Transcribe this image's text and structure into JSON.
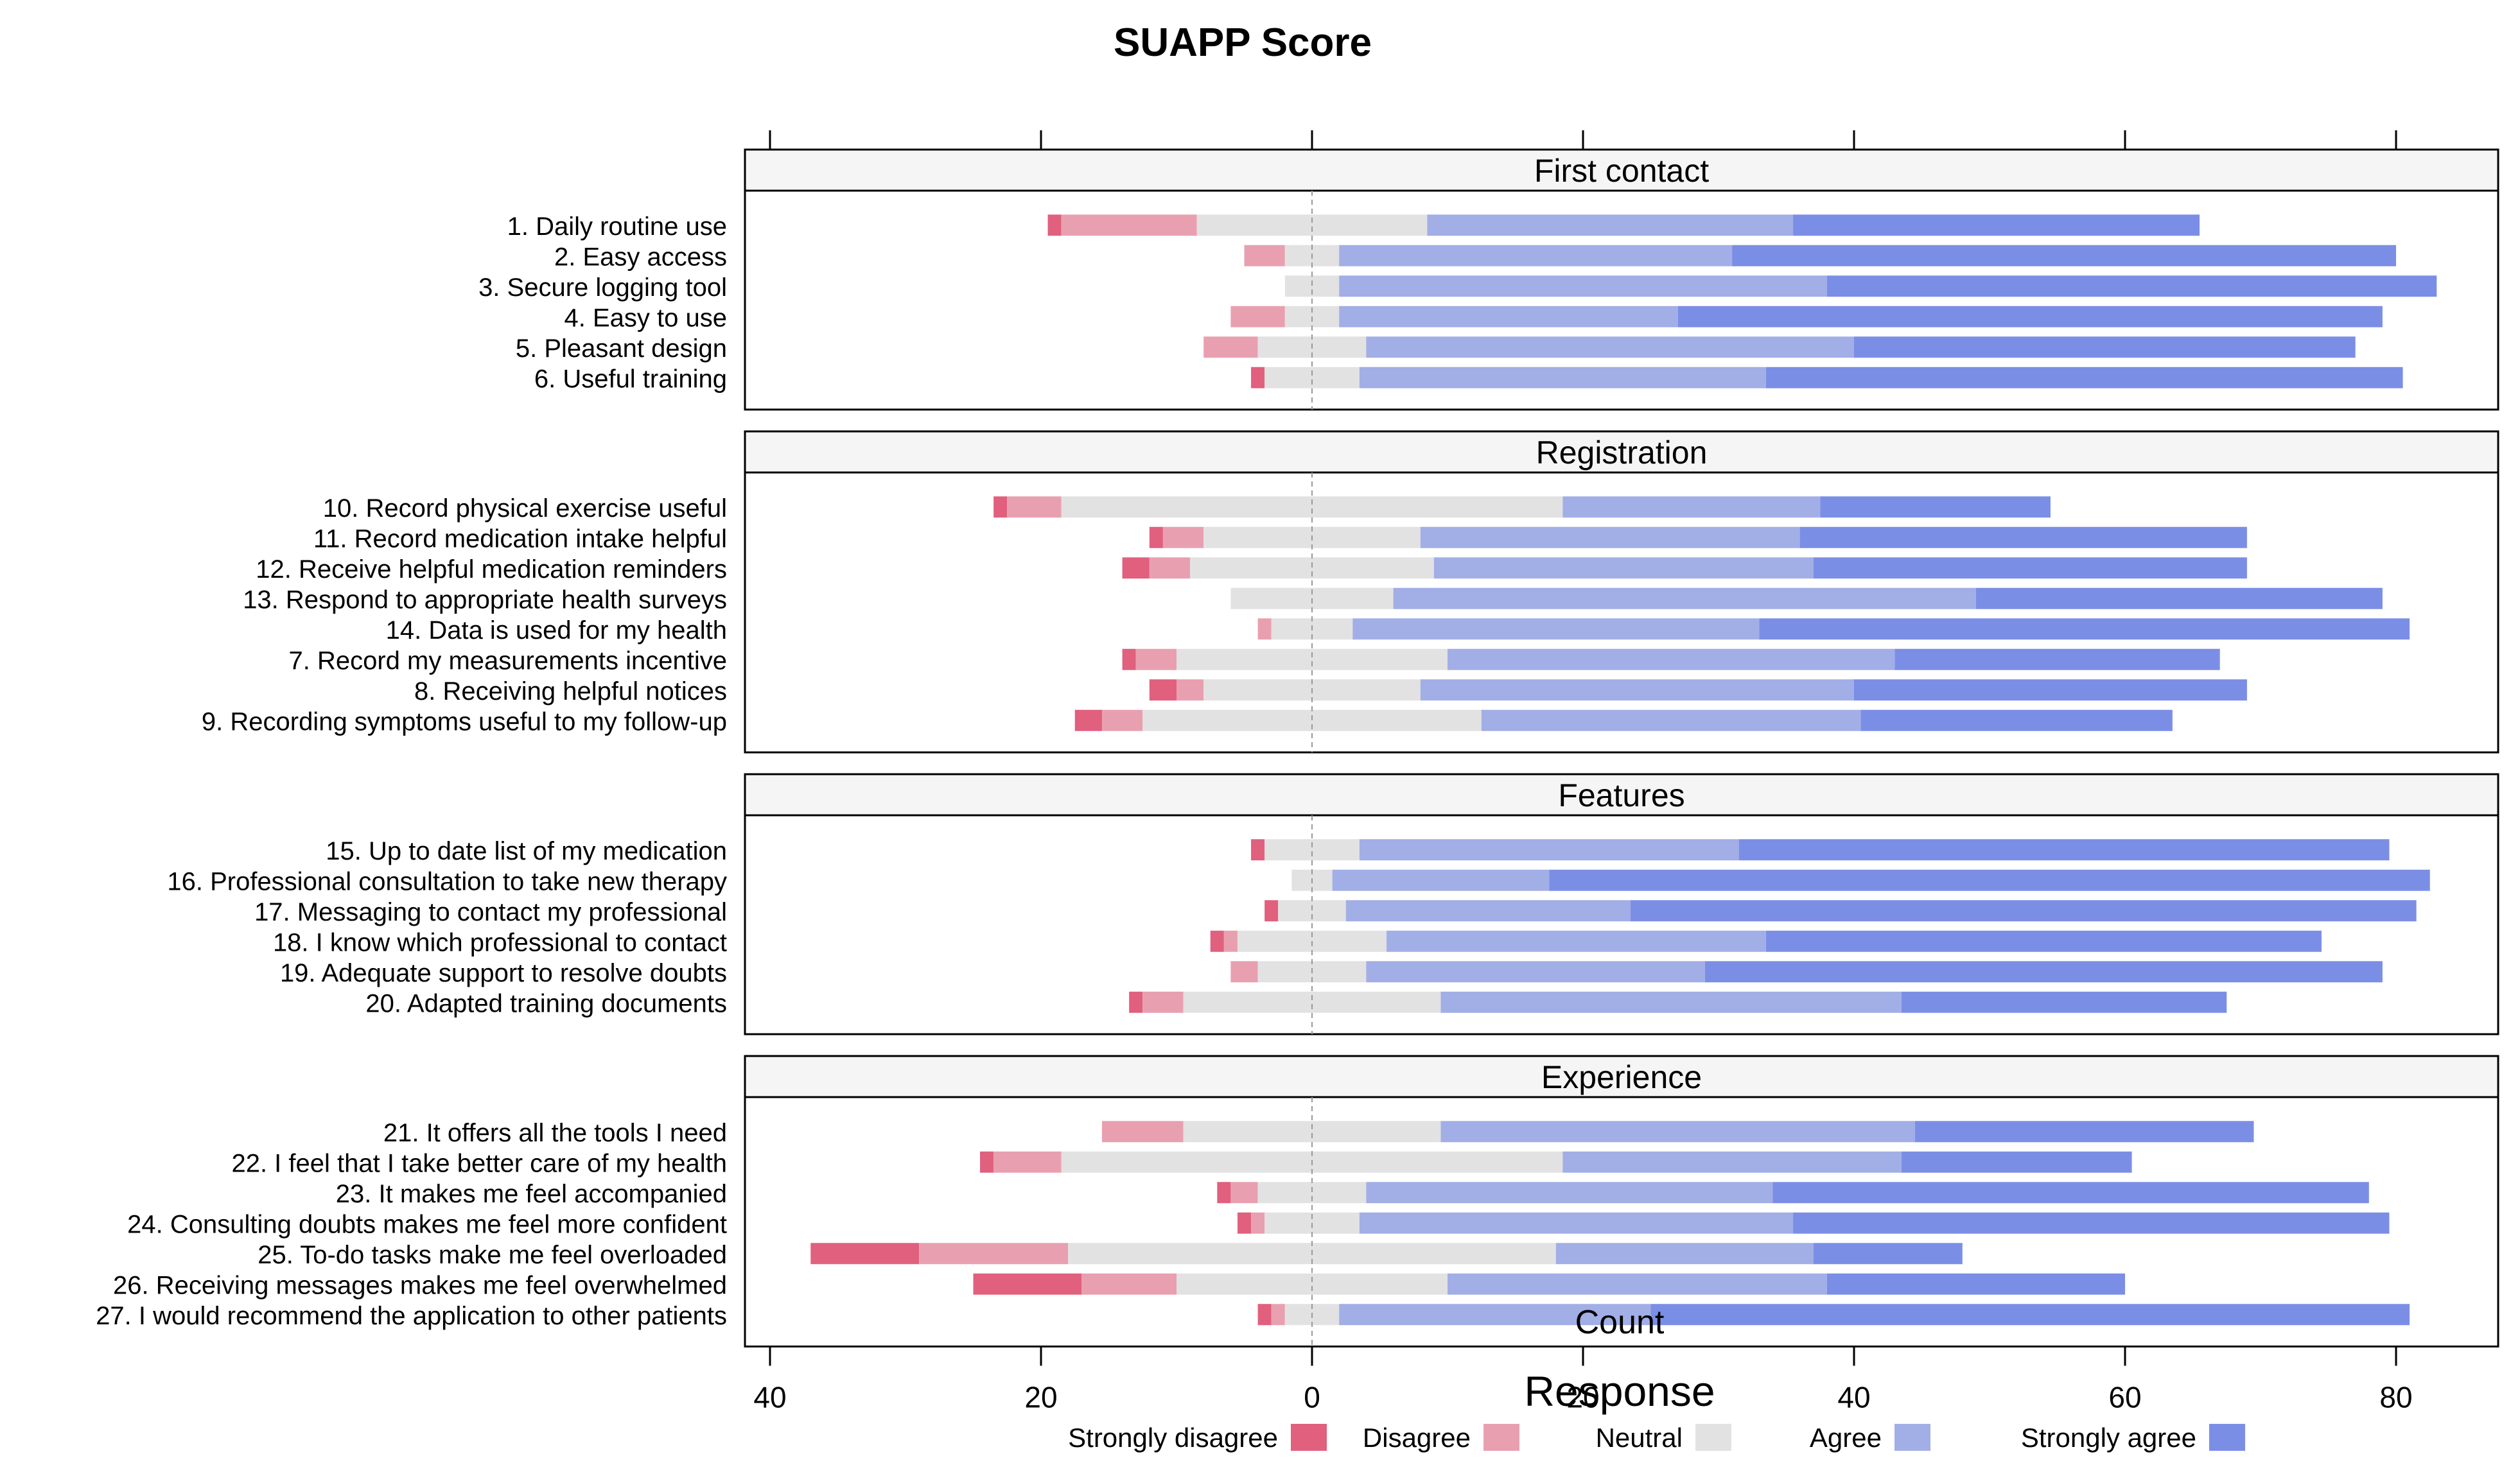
{
  "chart_data": {
    "type": "bar",
    "subtype": "diverging-stacked-likert",
    "title": "SUAPP Score",
    "xlabel": "Count",
    "ylabel": "",
    "xlim": [
      -40,
      88
    ],
    "x_ticks": [
      -40,
      -20,
      0,
      20,
      40,
      60,
      80
    ],
    "x_tick_labels": [
      "40",
      "20",
      "0",
      "20",
      "40",
      "60",
      "80"
    ],
    "legend_title": "Response",
    "legend_position": "bottom",
    "categories": [
      "Strongly disagree",
      "Disagree",
      "Neutral",
      "Agree",
      "Strongly agree"
    ],
    "colors": {
      "Strongly disagree": "#e0607e",
      "Disagree": "#e8a0b0",
      "Neutral": "#e2e2e2",
      "Agree": "#a2aee6",
      "Strongly agree": "#7b8ee6",
      "panel_header": "#f5f5f5",
      "zero_line": "#999999"
    },
    "panels": [
      {
        "name": "First contact",
        "items": [
          {
            "label": "1. Daily routine use",
            "values": [
              1,
              10,
              17,
              27,
              30
            ]
          },
          {
            "label": "2. Easy access",
            "values": [
              0,
              3,
              4,
              29,
              49
            ]
          },
          {
            "label": "3. Secure logging tool",
            "values": [
              0,
              0,
              4,
              36,
              45
            ]
          },
          {
            "label": "4. Easy to use",
            "values": [
              0,
              4,
              4,
              25,
              52
            ]
          },
          {
            "label": "5. Pleasant design",
            "values": [
              0,
              4,
              8,
              36,
              37
            ]
          },
          {
            "label": "6. Useful training",
            "values": [
              1,
              0,
              7,
              30,
              47
            ]
          }
        ]
      },
      {
        "name": "Registration",
        "items": [
          {
            "label": "10. Record physical exercise useful",
            "values": [
              1,
              4,
              37,
              19,
              17
            ]
          },
          {
            "label": "11. Record medication intake helpful",
            "values": [
              1,
              3,
              16,
              28,
              33
            ]
          },
          {
            "label": "12. Receive helpful medication reminders",
            "values": [
              2,
              3,
              18,
              28,
              32
            ]
          },
          {
            "label": "13. Respond to appropriate health surveys",
            "values": [
              0,
              0,
              12,
              43,
              30
            ]
          },
          {
            "label": "14. Data is used for my health",
            "values": [
              0,
              1,
              6,
              30,
              48
            ]
          },
          {
            "label": "7. Record my measurements incentive",
            "values": [
              1,
              3,
              20,
              33,
              24
            ]
          },
          {
            "label": "8. Receiving helpful notices",
            "values": [
              2,
              2,
              16,
              32,
              29
            ]
          },
          {
            "label": "9. Recording symptoms useful to my follow-up",
            "values": [
              2,
              3,
              25,
              28,
              23
            ]
          }
        ]
      },
      {
        "name": "Features",
        "items": [
          {
            "label": "15. Up to date list of my medication",
            "values": [
              1,
              0,
              7,
              28,
              48
            ]
          },
          {
            "label": "16. Professional consultation to take new therapy",
            "values": [
              0,
              0,
              3,
              16,
              65
            ]
          },
          {
            "label": "17. Messaging to contact my professional",
            "values": [
              1,
              0,
              5,
              21,
              58
            ]
          },
          {
            "label": "18. I know which professional to contact",
            "values": [
              1,
              1,
              11,
              28,
              41
            ]
          },
          {
            "label": "19. Adequate support to resolve doubts",
            "values": [
              0,
              2,
              8,
              25,
              50
            ]
          },
          {
            "label": "20. Adapted training documents",
            "values": [
              1,
              3,
              19,
              34,
              24
            ]
          }
        ]
      },
      {
        "name": "Experience",
        "items": [
          {
            "label": "21. It offers all the tools I need",
            "values": [
              0,
              6,
              19,
              35,
              25
            ]
          },
          {
            "label": "22. I feel that I take better care of my health",
            "values": [
              1,
              5,
              37,
              25,
              17
            ]
          },
          {
            "label": "23. It makes me feel accompanied",
            "values": [
              1,
              2,
              8,
              30,
              44
            ]
          },
          {
            "label": "24. Consulting doubts makes me feel more confident",
            "values": [
              1,
              1,
              7,
              32,
              44
            ]
          },
          {
            "label": "25. To-do tasks make me feel overloaded",
            "values": [
              8,
              11,
              36,
              19,
              11
            ]
          },
          {
            "label": "26. Receiving messages makes me feel overwhelmed",
            "values": [
              8,
              7,
              20,
              28,
              22
            ]
          },
          {
            "label": "27. I would recommend the application to other patients",
            "values": [
              1,
              1,
              4,
              23,
              56
            ]
          }
        ]
      }
    ]
  }
}
